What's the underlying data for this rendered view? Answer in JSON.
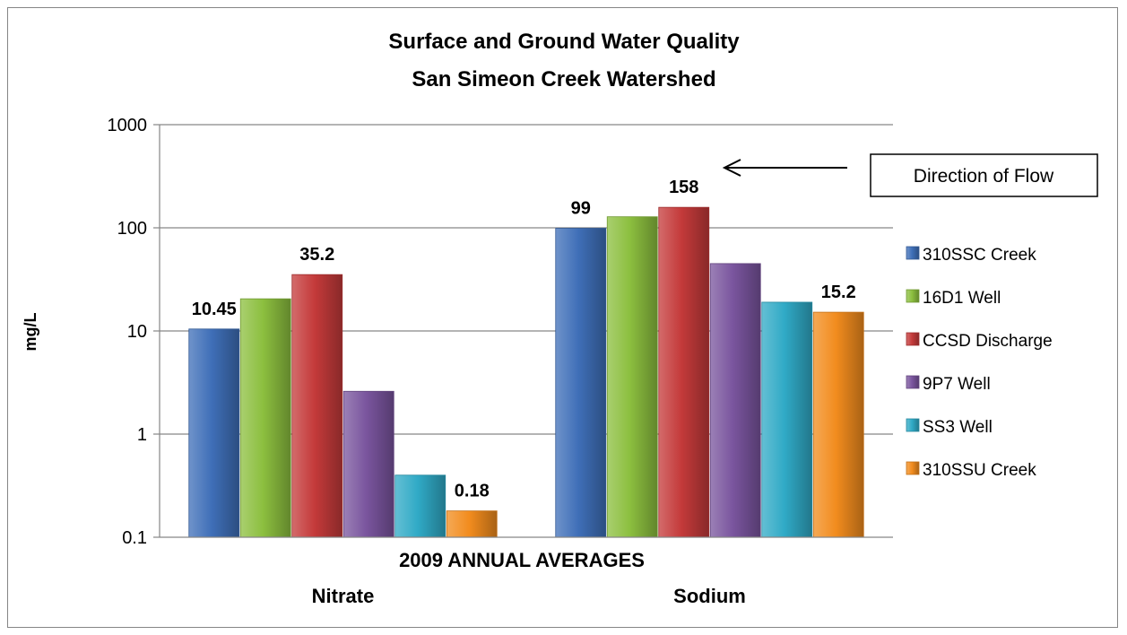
{
  "chart_data": {
    "type": "bar",
    "title": "Surface and Ground Water Quality",
    "subtitle": "San Simeon Creek Watershed",
    "xlabel": "2009 ANNUAL AVERAGES",
    "ylabel": "mg/L",
    "y_scale": "log",
    "ylim": [
      0.1,
      1000
    ],
    "y_ticks": [
      "0.1",
      "1",
      "10",
      "100",
      "1000"
    ],
    "grid": true,
    "legend_position": "right",
    "categories": [
      "Nitrate",
      "Sodium"
    ],
    "series": [
      {
        "name": "310SSC Creek",
        "values": [
          10.45,
          99
        ],
        "color": "#3f6fb8",
        "labels": [
          "10.45",
          "99"
        ]
      },
      {
        "name": "16D1 Well",
        "values": [
          20.5,
          128
        ],
        "color": "#8cbf3f",
        "labels": [
          "",
          ""
        ]
      },
      {
        "name": "CCSD Discharge",
        "values": [
          35.2,
          158
        ],
        "color": "#c43a3a",
        "labels": [
          "35.2",
          "158"
        ]
      },
      {
        "name": "9P7 Well",
        "values": [
          2.6,
          45
        ],
        "color": "#7a559e",
        "labels": [
          "",
          ""
        ]
      },
      {
        "name": "SS3 Well",
        "values": [
          0.4,
          19
        ],
        "color": "#30aac6",
        "labels": [
          "",
          ""
        ]
      },
      {
        "name": "310SSU Creek",
        "values": [
          0.18,
          15.2
        ],
        "color": "#f28c1e",
        "labels": [
          "0.18",
          "15.2"
        ]
      }
    ],
    "annotation": {
      "text": "Direction of Flow",
      "arrow": "left"
    }
  }
}
